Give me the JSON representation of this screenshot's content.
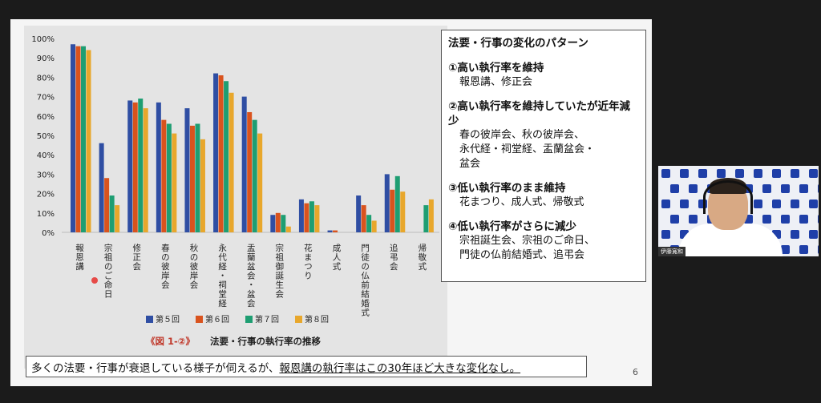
{
  "slide": {
    "page_number": "6",
    "caption": {
      "text_before": "多くの法要・行事が衰退している様子が伺えるが、",
      "text_underlined": "報恩講の執行率はこの30年ほど大きな変化なし。"
    },
    "info_box": {
      "title": "法要・行事の変化のパターン",
      "patterns": [
        {
          "heading": "①高い執行率を維持",
          "lines": [
            "報恩講、修正会"
          ]
        },
        {
          "heading": "②高い執行率を維持していたが近年減少",
          "lines": [
            "春の彼岸会、秋の彼岸会、",
            "永代経・祠堂経、盂蘭盆会・",
            "盆会"
          ]
        },
        {
          "heading": "③低い執行率のまま維持",
          "lines": [
            "花まつり、成人式、帰敬式"
          ]
        },
        {
          "heading": "④低い執行率がさらに減少",
          "lines": [
            "宗祖誕生会、宗祖のご命日、",
            "門徒の仏前結婚式、追弔会"
          ]
        }
      ]
    }
  },
  "video": {
    "name_tag": "伊藤寛和"
  },
  "colors": {
    "series": [
      "#2f4ea3",
      "#d9531e",
      "#1e9e72",
      "#e8a72c"
    ]
  },
  "chart_data": {
    "type": "bar",
    "caption_prefix": "《図 1-②》",
    "caption": "法要・行事の執行率の推移",
    "categories": [
      "報恩講",
      "宗祖のご命日",
      "修正会",
      "春の彼岸会",
      "秋の彼岸会",
      "永代経・祠堂経",
      "盂蘭盆会・盆会",
      "宗祖御誕生会",
      "花まつり",
      "成人式",
      "門徒の仏前結婚式",
      "追弔会",
      "帰敬式"
    ],
    "series": [
      {
        "name": "第５回",
        "values": [
          97,
          46,
          68,
          67,
          64,
          82,
          70,
          9,
          17,
          1,
          19,
          30,
          0
        ]
      },
      {
        "name": "第６回",
        "values": [
          96,
          28,
          67,
          58,
          55,
          81,
          62,
          10,
          15,
          1,
          14,
          22,
          0
        ]
      },
      {
        "name": "第７回",
        "values": [
          96,
          19,
          69,
          56,
          56,
          78,
          58,
          9,
          16,
          0,
          9,
          29,
          14
        ]
      },
      {
        "name": "第８回",
        "values": [
          94,
          14,
          64,
          51,
          48,
          72,
          51,
          3,
          14,
          0,
          6,
          21,
          17
        ]
      }
    ],
    "ylim": [
      0,
      100
    ],
    "yticks": [
      "0%",
      "10%",
      "20%",
      "30%",
      "40%",
      "50%",
      "60%",
      "70%",
      "80%",
      "90%",
      "100%"
    ],
    "grid": false,
    "legend_position": "bottom"
  }
}
